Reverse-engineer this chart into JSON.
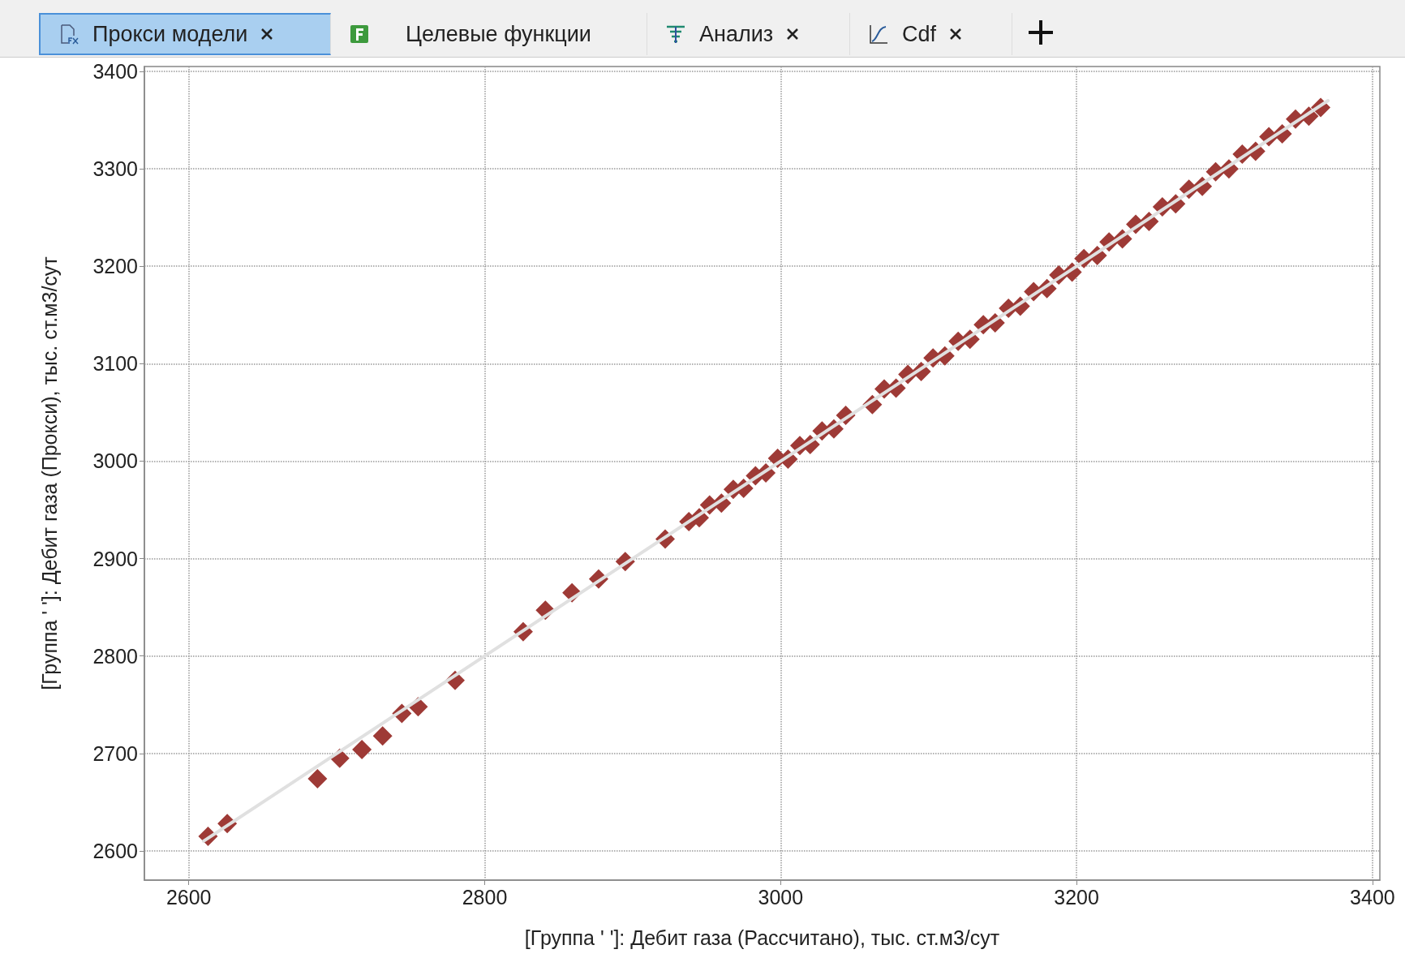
{
  "chart_data": {
    "type": "scatter",
    "xlabel": "[Группа ' ']: Дебит газа (Рассчитано), тыс. ст.м3/сут",
    "ylabel": "[Группа ' ']: Дебит газа (Прокси), тыс. ст.м3/сут",
    "annotations": [
      "Прокси модели",
      "Целевые функции",
      "Анализ",
      "Cdf"
    ],
    "xlim": [
      2570,
      3405
    ],
    "ylim": [
      2570,
      3405
    ],
    "xticks": [
      2600,
      2800,
      3000,
      3200,
      3400
    ],
    "yticks": [
      2600,
      2700,
      2800,
      2900,
      3000,
      3100,
      3200,
      3300,
      3400
    ],
    "grid": true,
    "marker": "diamond",
    "series": [
      {
        "color": "#9e3a36",
        "x": [
          2613,
          2626,
          2687,
          2702,
          2717,
          2731,
          2744,
          2755,
          2780,
          2826,
          2841,
          2859,
          2877,
          2895,
          2922,
          2938,
          2945,
          2952,
          2960,
          2968,
          2975,
          2983,
          2990,
          2998,
          3005,
          3013,
          3020,
          3028,
          3036,
          3044,
          3062,
          3070,
          3078,
          3086,
          3095,
          3103,
          3111,
          3120,
          3128,
          3137,
          3145,
          3154,
          3162,
          3171,
          3180,
          3188,
          3197,
          3205,
          3214,
          3222,
          3231,
          3240,
          3249,
          3258,
          3267,
          3276,
          3285,
          3294,
          3303,
          3312,
          3321,
          3330,
          3339,
          3348,
          3357,
          3365
        ],
        "values": [
          2615,
          2628,
          2674,
          2695,
          2704,
          2718,
          2741,
          2748,
          2775,
          2825,
          2847,
          2865,
          2879,
          2897,
          2920,
          2938,
          2942,
          2955,
          2957,
          2971,
          2972,
          2985,
          2988,
          3003,
          3002,
          3016,
          3017,
          3031,
          3033,
          3047,
          3058,
          3074,
          3075,
          3089,
          3092,
          3106,
          3108,
          3123,
          3125,
          3140,
          3142,
          3157,
          3159,
          3174,
          3177,
          3191,
          3194,
          3208,
          3211,
          3225,
          3228,
          3243,
          3246,
          3261,
          3264,
          3279,
          3282,
          3297,
          3300,
          3315,
          3318,
          3333,
          3336,
          3351,
          3354,
          3363
        ]
      },
      {
        "type": "line",
        "color": "#e0e0e0",
        "line_style": "solid",
        "marker": "none",
        "x": [
          2610,
          3370
        ],
        "values": [
          2610,
          3370
        ]
      }
    ]
  }
}
